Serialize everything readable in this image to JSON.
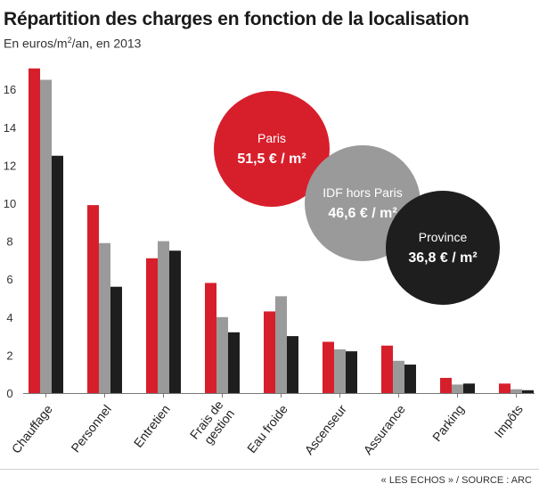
{
  "header": {
    "title": "Répartition des charges en fonction de la localisation",
    "subtitle_prefix": "En euros/m",
    "subtitle_sup": "2",
    "subtitle_suffix": "/an, en 2013"
  },
  "footer": {
    "source": "« LES ECHOS » / SOURCE : ARC"
  },
  "chart_data": {
    "type": "bar",
    "categories": [
      "Chauffage",
      "Personnel",
      "Entretien",
      "Frais de gestion",
      "Eau froide",
      "Ascenseur",
      "Assurance",
      "Parking",
      "Impôts"
    ],
    "series": [
      {
        "name": "Paris",
        "color": "#d71f2b",
        "values": [
          17.1,
          9.9,
          7.1,
          5.8,
          4.3,
          2.7,
          2.5,
          0.8,
          0.5
        ]
      },
      {
        "name": "IDF hors Paris",
        "color": "#9a9a9a",
        "values": [
          16.5,
          7.9,
          8.0,
          4.0,
          5.1,
          2.3,
          1.7,
          0.45,
          0.2
        ]
      },
      {
        "name": "Province",
        "color": "#1e1e1e",
        "values": [
          12.5,
          5.6,
          7.5,
          3.2,
          3.0,
          2.2,
          1.5,
          0.5,
          0.15
        ]
      }
    ],
    "ylim": [
      0,
      17.5
    ],
    "yticks": [
      0,
      2,
      4,
      6,
      8,
      10,
      12,
      14,
      16
    ],
    "grid": false,
    "xlabel": "",
    "ylabel": "",
    "legend": [
      {
        "series": "Paris",
        "label": "Paris",
        "value_text": "51,5 € / m²",
        "color": "#d71f2b",
        "text_color": "#ffffff"
      },
      {
        "series": "IDF hors Paris",
        "label": "IDF hors Paris",
        "value_text": "46,6 € / m²",
        "color": "#9a9a9a",
        "text_color": "#ffffff"
      },
      {
        "series": "Province",
        "label": "Province",
        "value_text": "36,8 € / m²",
        "color": "#1e1e1e",
        "text_color": "#ffffff"
      }
    ]
  }
}
